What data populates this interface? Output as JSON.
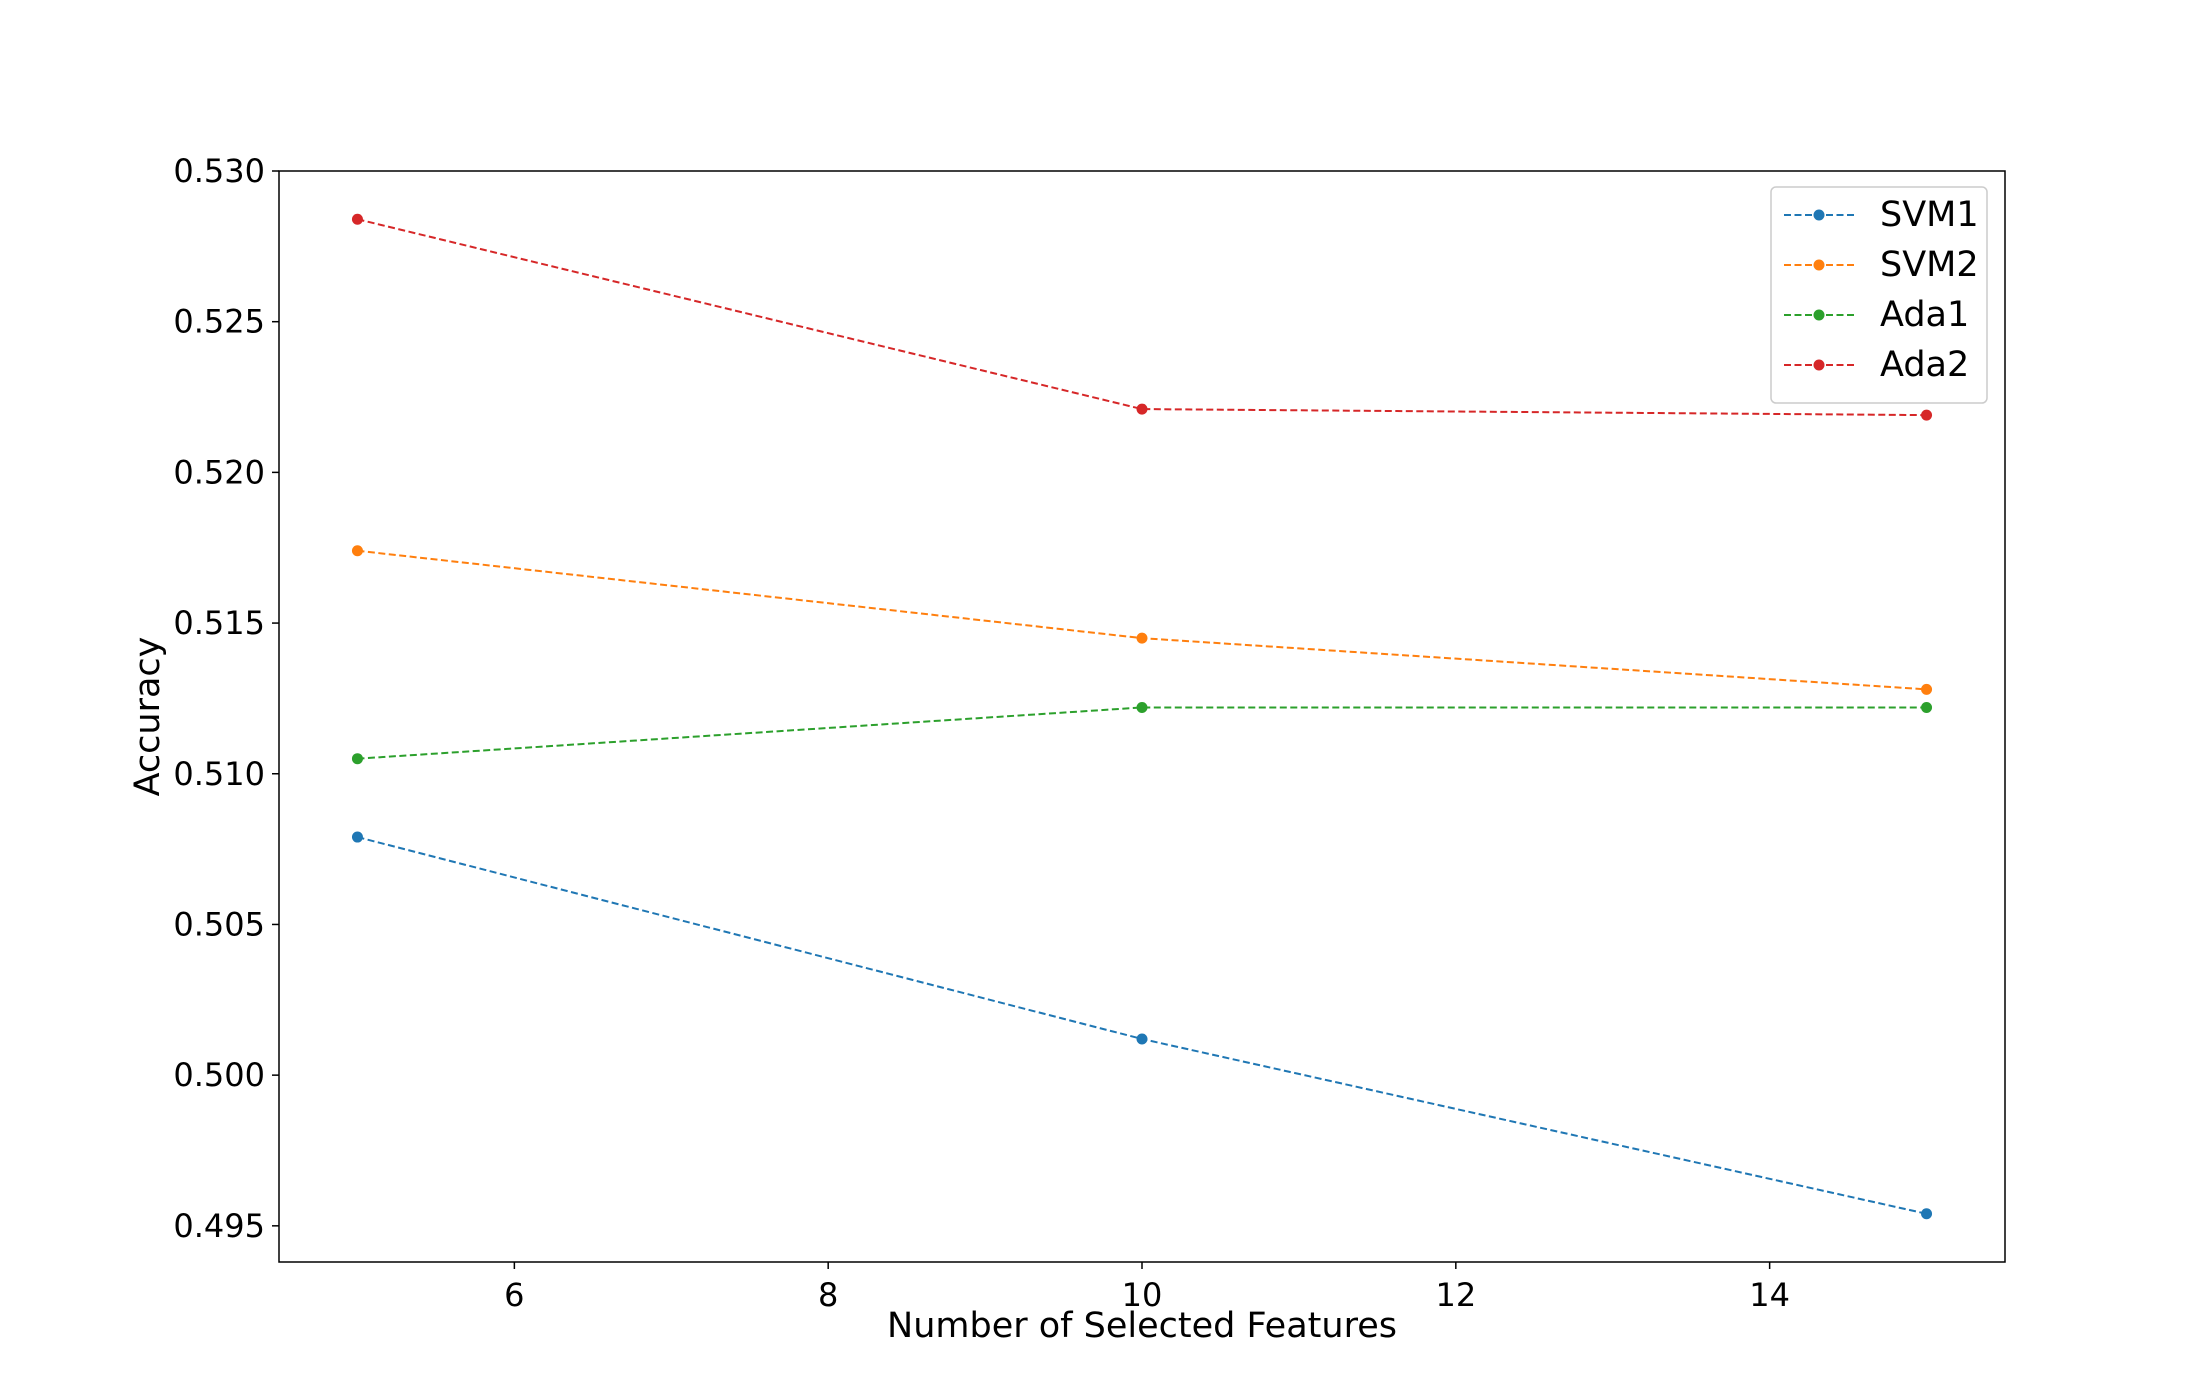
{
  "chart_data": {
    "type": "line",
    "title": "",
    "xlabel": "Number of Selected Features",
    "ylabel": "Accuracy",
    "x": [
      5,
      10,
      15
    ],
    "xlim": [
      4.5,
      15.5
    ],
    "ylim": [
      0.4938,
      0.53
    ],
    "xticks": [
      6,
      8,
      10,
      12,
      14
    ],
    "yticks": [
      0.495,
      0.5,
      0.505,
      0.51,
      0.515,
      0.52,
      0.525,
      0.53
    ],
    "xtick_labels": [
      "6",
      "8",
      "10",
      "12",
      "14"
    ],
    "ytick_labels": [
      "0.495",
      "0.500",
      "0.505",
      "0.510",
      "0.515",
      "0.520",
      "0.525",
      "0.530"
    ],
    "grid": false,
    "legend_position": "top-right",
    "line_style": "dashed",
    "marker": "circle",
    "series": [
      {
        "name": "SVM1",
        "color": "#1f77b4",
        "values": [
          0.5079,
          0.5012,
          0.4954
        ]
      },
      {
        "name": "SVM2",
        "color": "#ff7f0e",
        "values": [
          0.5174,
          0.5145,
          0.5128
        ]
      },
      {
        "name": "Ada1",
        "color": "#2ca02c",
        "values": [
          0.5105,
          0.5122,
          0.5122
        ]
      },
      {
        "name": "Ada2",
        "color": "#d62728",
        "values": [
          0.5284,
          0.5221,
          0.5219
        ]
      }
    ]
  }
}
